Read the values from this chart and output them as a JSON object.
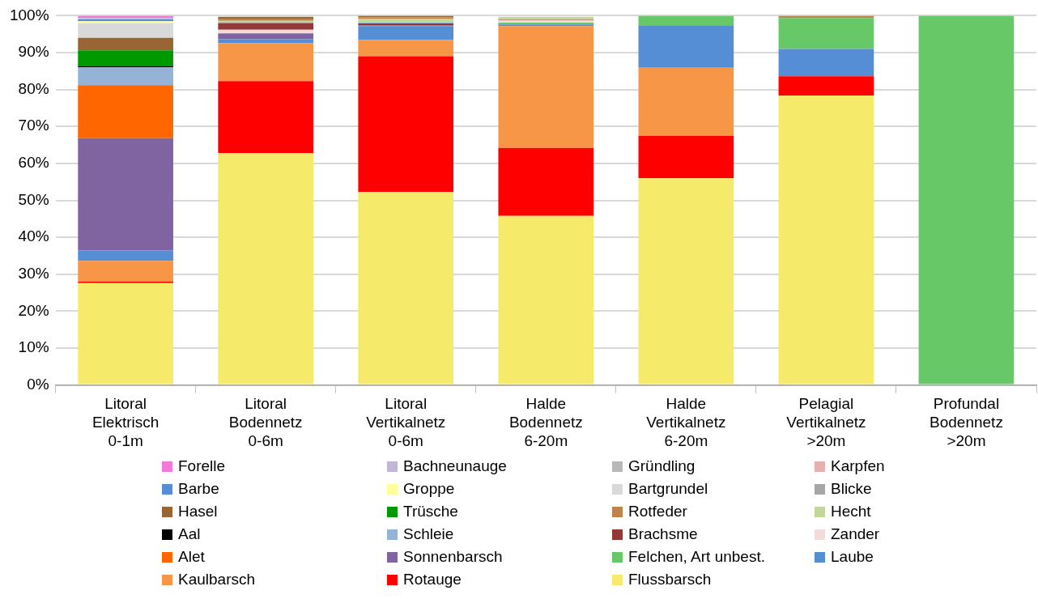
{
  "chart_data": {
    "type": "bar",
    "stacked": true,
    "grid": "y",
    "legend": "bottom",
    "categories": [
      "Litoral\nElektrisch\n0-1m",
      "Litoral\nBodennetz\n0-6m",
      "Litoral\nVertikalnetz\n0-6m",
      "Halde\nBodennetz\n6-20m",
      "Halde\nVertikalnetz\n6-20m",
      "Pelagial\nVertikalnetz\n>20m",
      "Profundal\nBodennetz\n>20m"
    ],
    "ylim": [
      0,
      100
    ],
    "yticks": [
      {
        "value": 0,
        "label": "0%"
      },
      {
        "value": 10,
        "label": "10%"
      },
      {
        "value": 20,
        "label": "20%"
      },
      {
        "value": 30,
        "label": "30%"
      },
      {
        "value": 40,
        "label": "40%"
      },
      {
        "value": 50,
        "label": "50%"
      },
      {
        "value": 60,
        "label": "60%"
      },
      {
        "value": 70,
        "label": "70%"
      },
      {
        "value": 80,
        "label": "80%"
      },
      {
        "value": 90,
        "label": "90%"
      },
      {
        "value": 100,
        "label": "100%"
      }
    ],
    "series": [
      {
        "name": "Flussbarsch",
        "color": "#f5ea6a",
        "values": [
          27.6,
          62.8,
          52.3,
          45.8,
          56.0,
          78.4,
          0
        ]
      },
      {
        "name": "Rotauge",
        "color": "#ff0000",
        "values": [
          0.4,
          19.5,
          36.7,
          18.4,
          11.5,
          5.2,
          0
        ]
      },
      {
        "name": "Kaulbarsch",
        "color": "#f79646",
        "values": [
          5.6,
          10.3,
          4.4,
          33.0,
          18.4,
          0,
          0
        ]
      },
      {
        "name": "Laube",
        "color": "#558ed5",
        "values": [
          2.8,
          1.0,
          3.8,
          0.4,
          11.5,
          7.4,
          0
        ]
      },
      {
        "name": "Felchen, Art unbest.",
        "color": "#66c866",
        "values": [
          0,
          0,
          0,
          0.5,
          2.6,
          8.4,
          100
        ]
      },
      {
        "name": "Sonnenbarsch",
        "color": "#8064a2",
        "values": [
          30.4,
          1.6,
          0.2,
          0,
          0,
          0,
          0
        ]
      },
      {
        "name": "Alet",
        "color": "#ff6600",
        "values": [
          14.4,
          0,
          0,
          0,
          0,
          0,
          0
        ]
      },
      {
        "name": "Zander",
        "color": "#f2dcdb",
        "values": [
          0,
          1.0,
          0,
          0.6,
          0,
          0,
          0
        ]
      },
      {
        "name": "Brachsme",
        "color": "#953735",
        "values": [
          0,
          1.8,
          0.5,
          0.2,
          0,
          0,
          0
        ]
      },
      {
        "name": "Schleie",
        "color": "#95b3d7",
        "values": [
          4.8,
          0.3,
          0.3,
          0,
          0,
          0,
          0
        ]
      },
      {
        "name": "Aal",
        "color": "#000000",
        "values": [
          0.3,
          0,
          0,
          0,
          0,
          0,
          0
        ]
      },
      {
        "name": "Hecht",
        "color": "#c4d79b",
        "values": [
          0,
          0.3,
          1.0,
          0.8,
          0,
          0,
          0
        ]
      },
      {
        "name": "Rotfeder",
        "color": "#c0844a",
        "values": [
          0,
          0.6,
          0.4,
          null,
          0,
          0.6,
          0
        ]
      },
      {
        "name": "Trüsche",
        "color": "#009900",
        "values": [
          4.3,
          0,
          0,
          0,
          0,
          0,
          0
        ]
      },
      {
        "name": "Hasel",
        "color": "#996633",
        "values": [
          3.4,
          0.5,
          0.4,
          0,
          0,
          0,
          0
        ]
      },
      {
        "name": "Blicke",
        "color": "#a6a6a6",
        "values": [
          0,
          0,
          0,
          0,
          0,
          0,
          0
        ]
      },
      {
        "name": "Bartgrundel",
        "color": "#d9d9d9",
        "values": [
          4.0,
          null,
          0,
          0,
          0,
          0,
          0
        ]
      },
      {
        "name": "Groppe",
        "color": "#ffff99",
        "values": [
          0.5,
          0,
          0,
          0,
          0,
          0,
          0
        ]
      },
      {
        "name": "Barbe",
        "color": "#558ed5",
        "values": [
          0.5,
          0,
          0,
          0,
          0,
          0,
          0
        ]
      },
      {
        "name": "Karpfen",
        "color": "#e6b0b0",
        "values": [
          0,
          0,
          0,
          0,
          0,
          0,
          0
        ]
      },
      {
        "name": "Gründling",
        "color": "#b8b8b8",
        "values": [
          0,
          0,
          0,
          0,
          0,
          0,
          0
        ]
      },
      {
        "name": "Bachneunauge",
        "color": "#c3b5d6",
        "values": [
          0.4,
          0,
          0,
          0,
          0,
          0,
          0
        ]
      },
      {
        "name": "Forelle",
        "color": "#f07ad8",
        "values": [
          0.6,
          0,
          0,
          0,
          0,
          0,
          0
        ]
      }
    ]
  }
}
